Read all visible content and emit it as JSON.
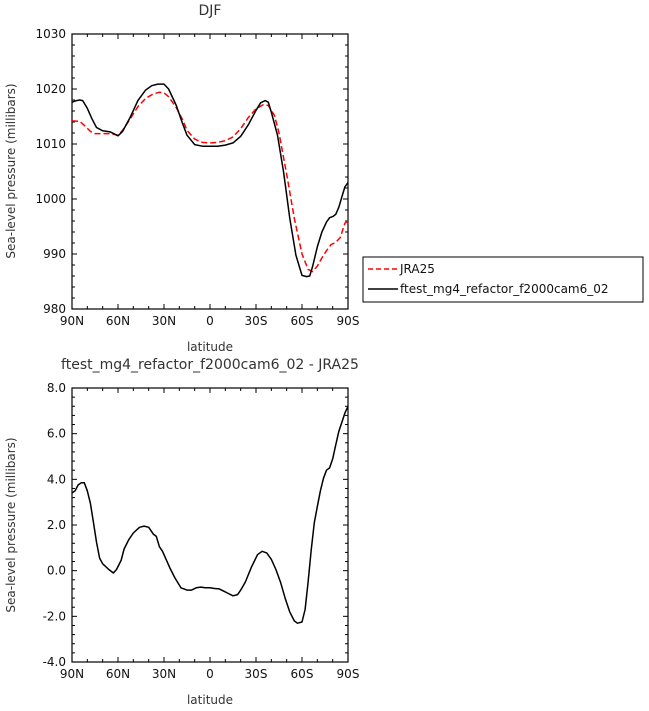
{
  "chart_data": [
    {
      "type": "line",
      "title": "DJF",
      "xlabel": "latitude",
      "ylabel": "Sea-level pressure (millibars)",
      "xlim": [
        90,
        -90
      ],
      "ylim": [
        980,
        1030
      ],
      "xticks": [
        90,
        60,
        30,
        0,
        -30,
        -60,
        -90
      ],
      "xtick_labels": [
        "90N",
        "60N",
        "30N",
        "0",
        "30S",
        "60S",
        "90S"
      ],
      "yticks": [
        980,
        990,
        1000,
        1010,
        1020,
        1030
      ],
      "ytick_labels": [
        "980",
        "990",
        "1000",
        "1010",
        "1020",
        "1030"
      ],
      "legend_position": "right",
      "series": [
        {
          "name": "JRA25",
          "color": "#ff0000",
          "style": "dashed",
          "x": [
            90,
            85,
            82,
            78,
            75,
            70,
            65,
            60,
            57,
            52,
            47,
            42,
            37,
            33,
            30,
            27,
            22,
            18,
            15,
            10,
            5,
            0,
            -5,
            -10,
            -15,
            -20,
            -25,
            -30,
            -35,
            -38,
            -42,
            -45,
            -50,
            -55,
            -60,
            -64,
            -67,
            -70,
            -73,
            -76,
            -79,
            -82,
            -85,
            -88,
            -90
          ],
          "y": [
            1014.2,
            1014.1,
            1013.4,
            1012.3,
            1011.9,
            1011.9,
            1011.9,
            1011.6,
            1012.5,
            1014.6,
            1016.8,
            1018.3,
            1019.1,
            1019.4,
            1019.3,
            1018.6,
            1016.6,
            1014.5,
            1012.5,
            1010.9,
            1010.3,
            1010.2,
            1010.3,
            1010.6,
            1011.3,
            1012.8,
            1014.8,
            1016.4,
            1017.2,
            1017.0,
            1015.2,
            1012.0,
            1004.5,
            996.5,
            990.0,
            987.2,
            986.8,
            987.8,
            989.3,
            990.6,
            991.7,
            992.1,
            993.0,
            995.6,
            996.0
          ]
        },
        {
          "name": "ftest_mg4_refactor_f2000cam6_02",
          "color": "#000000",
          "style": "solid",
          "x": [
            90,
            87,
            85,
            83,
            80,
            77,
            74,
            70,
            65,
            60,
            57,
            52,
            47,
            42,
            38,
            34,
            30,
            27,
            22,
            18,
            15,
            10,
            5,
            0,
            -5,
            -10,
            -15,
            -20,
            -25,
            -30,
            -33,
            -36,
            -38,
            -40,
            -44,
            -48,
            -52,
            -56,
            -60,
            -63,
            -65,
            -67,
            -70,
            -73,
            -76,
            -78,
            -80,
            -82,
            -84,
            -86,
            -88,
            -90
          ],
          "y": [
            1017.6,
            1017.9,
            1018.0,
            1017.9,
            1016.5,
            1014.6,
            1013.0,
            1012.4,
            1012.2,
            1011.5,
            1012.3,
            1014.9,
            1017.9,
            1019.8,
            1020.6,
            1020.9,
            1020.9,
            1020.0,
            1017.0,
            1013.8,
            1011.6,
            1009.9,
            1009.6,
            1009.6,
            1009.6,
            1009.8,
            1010.2,
            1011.4,
            1013.5,
            1016.1,
            1017.5,
            1017.9,
            1017.6,
            1015.8,
            1011.6,
            1004.9,
            996.6,
            989.8,
            986.1,
            985.9,
            986.0,
            987.8,
            991.3,
            994.0,
            995.8,
            996.6,
            996.8,
            997.2,
            998.5,
            1000.4,
            1002.2,
            1003.0
          ]
        }
      ]
    },
    {
      "type": "line",
      "title": "ftest_mg4_refactor_f2000cam6_02 - JRA25",
      "xlabel": "latitude",
      "ylabel": "Sea-level pressure (millibars)",
      "xlim": [
        90,
        -90
      ],
      "ylim": [
        -4,
        8
      ],
      "xticks": [
        90,
        60,
        30,
        0,
        -30,
        -60,
        -90
      ],
      "xtick_labels": [
        "90N",
        "60N",
        "30N",
        "0",
        "30S",
        "60S",
        "90S"
      ],
      "yticks": [
        -4,
        -2,
        0,
        2,
        4,
        6,
        8
      ],
      "ytick_labels": [
        "-4.0",
        "-2.0",
        "0.0",
        "2.0",
        "4.0",
        "6.0",
        "8.0"
      ],
      "series": [
        {
          "color": "#000000",
          "style": "solid",
          "x": [
            90,
            88,
            86,
            84,
            82,
            80,
            78,
            76,
            74,
            72,
            70,
            66,
            63,
            61,
            58,
            56,
            53,
            50,
            46,
            43,
            40,
            37,
            35,
            33,
            31,
            29,
            26,
            23,
            19,
            15,
            12,
            9,
            6,
            3,
            0,
            -3,
            -6,
            -9,
            -12,
            -15,
            -18,
            -20,
            -23,
            -27,
            -31,
            -34,
            -37,
            -40,
            -43,
            -46,
            -49,
            -52,
            -55,
            -57,
            -60,
            -62,
            -64,
            -66,
            -68,
            -70,
            -72,
            -74,
            -76,
            -78,
            -80,
            -82,
            -84,
            -86,
            -88,
            -90
          ],
          "y": [
            3.4,
            3.5,
            3.75,
            3.85,
            3.85,
            3.5,
            2.95,
            2.1,
            1.25,
            0.55,
            0.3,
            0.05,
            -0.1,
            0.05,
            0.45,
            0.95,
            1.35,
            1.65,
            1.9,
            1.95,
            1.9,
            1.6,
            1.5,
            1.05,
            0.85,
            0.55,
            0.1,
            -0.3,
            -0.75,
            -0.85,
            -0.85,
            -0.75,
            -0.72,
            -0.75,
            -0.75,
            -0.78,
            -0.8,
            -0.9,
            -1.0,
            -1.1,
            -1.05,
            -0.85,
            -0.5,
            0.15,
            0.7,
            0.85,
            0.78,
            0.5,
            0.05,
            -0.5,
            -1.2,
            -1.8,
            -2.2,
            -2.3,
            -2.25,
            -1.7,
            -0.5,
            0.9,
            2.1,
            2.8,
            3.5,
            4.05,
            4.4,
            4.5,
            4.9,
            5.5,
            6.1,
            6.5,
            6.9,
            7.2
          ]
        }
      ]
    }
  ]
}
